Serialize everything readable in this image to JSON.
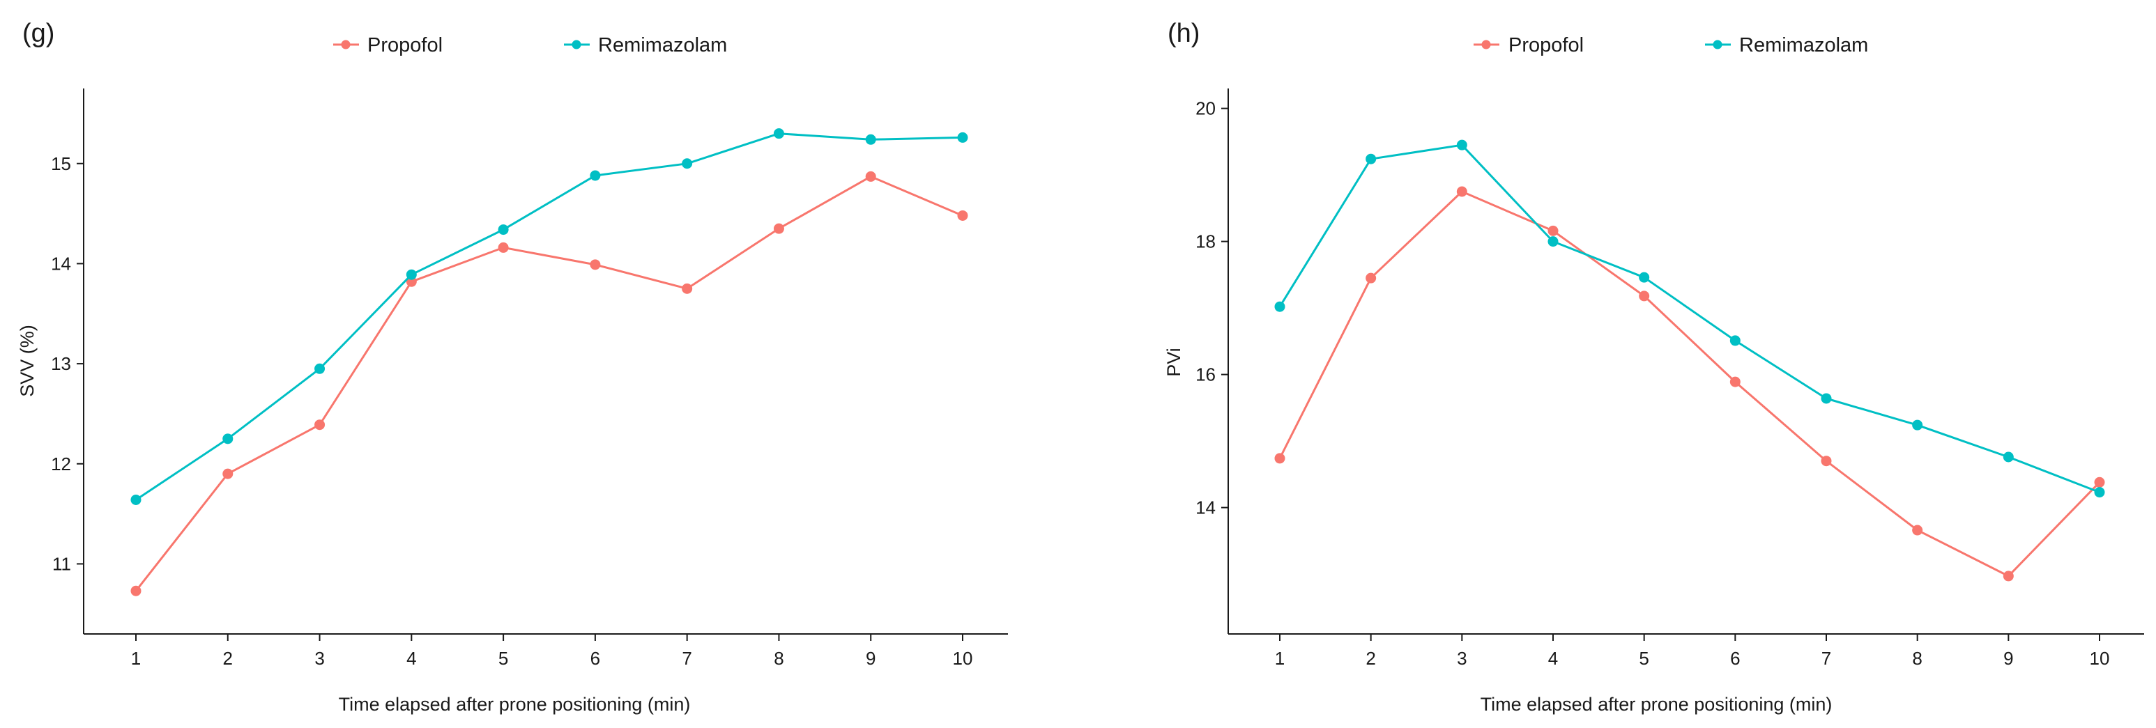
{
  "chart_data": [
    {
      "panel": "(g)",
      "type": "line",
      "categories": [
        "1",
        "2",
        "3",
        "4",
        "5",
        "6",
        "7",
        "8",
        "9",
        "10"
      ],
      "x": [
        1,
        2,
        3,
        4,
        5,
        6,
        7,
        8,
        9,
        10
      ],
      "series": [
        {
          "name": "Propofol",
          "color": "#F8766D",
          "values": [
            10.73,
            11.9,
            12.39,
            13.82,
            14.16,
            13.99,
            13.75,
            14.35,
            14.87,
            14.48
          ]
        },
        {
          "name": "Remimazolam",
          "color": "#00BFC4",
          "values": [
            11.64,
            12.25,
            12.95,
            13.89,
            14.34,
            14.88,
            15.0,
            15.3,
            15.24,
            15.26
          ]
        }
      ],
      "xlabel": "Time elapsed after prone positioning (min)",
      "ylabel": "SVV (%)",
      "yticks": [
        11,
        12,
        13,
        14,
        15
      ],
      "ylim": [
        10.3,
        15.75
      ],
      "legend": "top"
    },
    {
      "panel": "(h)",
      "type": "line",
      "categories": [
        "1",
        "2",
        "3",
        "4",
        "5",
        "6",
        "7",
        "8",
        "9",
        "10"
      ],
      "x": [
        1,
        2,
        3,
        4,
        5,
        6,
        7,
        8,
        9,
        10
      ],
      "series": [
        {
          "name": "Propofol",
          "color": "#F8766D",
          "values": [
            14.74,
            17.45,
            18.75,
            18.16,
            17.18,
            15.89,
            14.7,
            13.66,
            12.97,
            14.38
          ]
        },
        {
          "name": "Remimazolam",
          "color": "#00BFC4",
          "values": [
            17.02,
            19.24,
            19.45,
            18.0,
            17.46,
            16.51,
            15.64,
            15.24,
            14.76,
            14.23
          ]
        }
      ],
      "xlabel": "Time elapsed after prone positioning (min)",
      "ylabel": "PVi",
      "yticks": [
        14,
        16,
        18,
        20
      ],
      "ylim": [
        12.1,
        20.3
      ],
      "legend": "top"
    }
  ]
}
